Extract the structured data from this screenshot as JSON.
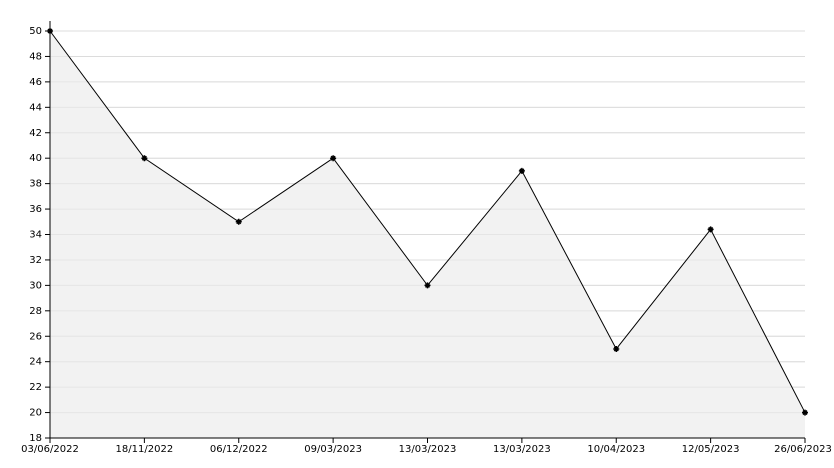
{
  "chart_data": {
    "type": "line",
    "categories": [
      "03/06/2022",
      "18/11/2022",
      "06/12/2022",
      "09/03/2023",
      "13/03/2023",
      "13/03/2023",
      "10/04/2023",
      "12/05/2023",
      "26/06/2023"
    ],
    "values": [
      50,
      40,
      35,
      40,
      30,
      39,
      25,
      34.4,
      20
    ],
    "color": "#000000",
    "fill": "#f2f2f2",
    "ylim": [
      18,
      50
    ],
    "yticks": [
      18,
      20,
      22,
      24,
      26,
      28,
      30,
      32,
      34,
      36,
      38,
      40,
      42,
      44,
      46,
      48,
      50
    ],
    "grid": true
  }
}
